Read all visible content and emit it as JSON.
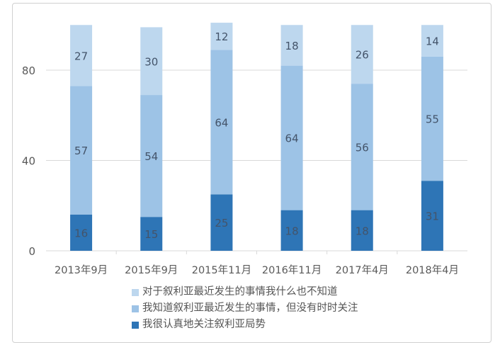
{
  "chart_data": {
    "type": "bar",
    "stacked": true,
    "categories": [
      "2013年9月",
      "2015年9月",
      "2015年11月",
      "2016年11月",
      "2017年4月",
      "2018年4月"
    ],
    "series": [
      {
        "name": "我很认真地关注叙利亚局势",
        "color": "#2e75b6",
        "values": [
          16,
          15,
          25,
          18,
          18,
          31
        ]
      },
      {
        "name": "我知道叙利亚最近发生的事情，但没有时时关注",
        "color": "#9dc3e6",
        "values": [
          57,
          54,
          64,
          64,
          56,
          55
        ]
      },
      {
        "name": "对于叙利亚最近发生的事情我什么也不知道",
        "color": "#bdd7ee",
        "values": [
          27,
          30,
          12,
          18,
          26,
          14
        ]
      }
    ],
    "yticks": [
      0,
      40,
      80
    ],
    "ylim": [
      0,
      100
    ],
    "grid": true,
    "legend_position": "bottom",
    "data_labels": true
  }
}
